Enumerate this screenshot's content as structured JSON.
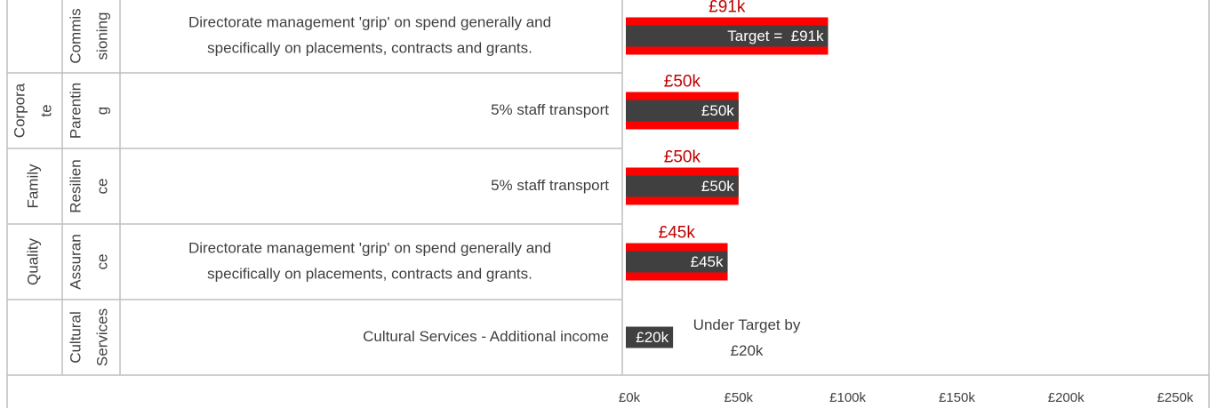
{
  "chart_data": {
    "type": "bar",
    "rows": [
      {
        "group": [],
        "unit": [
          "Commis",
          "sioning"
        ],
        "description": [
          "Directorate management 'grip' on spend generally and",
          "specifically on placements, contracts and grants."
        ],
        "target": 91,
        "target_label": "£91k",
        "actual": 91,
        "actual_label": "Target =  £91k"
      },
      {
        "group": [
          "Corpora",
          "te"
        ],
        "unit": [
          "Parentin",
          "g"
        ],
        "description": [
          "5% staff transport"
        ],
        "target": 50,
        "target_label": "£50k",
        "actual": 50,
        "actual_label": "£50k"
      },
      {
        "group": [
          "Family"
        ],
        "unit": [
          "Resilien",
          "ce"
        ],
        "description": [
          "5% staff transport"
        ],
        "target": 50,
        "target_label": "£50k",
        "actual": 50,
        "actual_label": "£50k"
      },
      {
        "group": [
          "Quality"
        ],
        "unit": [
          "Assuran",
          "ce"
        ],
        "description": [
          "Directorate management 'grip' on spend generally and",
          "specifically on placements, contracts and grants."
        ],
        "target": 45,
        "target_label": "£45k",
        "actual": 45,
        "actual_label": "£45k"
      },
      {
        "group": [],
        "unit": [
          "Cultural",
          "Services"
        ],
        "description": [
          "Cultural Services - Additional income"
        ],
        "actual": 20,
        "actual_label": "£20k",
        "annotation": [
          "Under Target by",
          "£20k"
        ]
      }
    ],
    "xlim": [
      0,
      250
    ],
    "xticks": [
      {
        "value": 0,
        "label": "£0k"
      },
      {
        "value": 50,
        "label": "£50k"
      },
      {
        "value": 100,
        "label": "£100k"
      },
      {
        "value": 150,
        "label": "£150k"
      },
      {
        "value": 200,
        "label": "£200k"
      },
      {
        "value": 250,
        "label": "£250k"
      }
    ],
    "target_color": "#ff0000",
    "actual_color": "#404040"
  }
}
